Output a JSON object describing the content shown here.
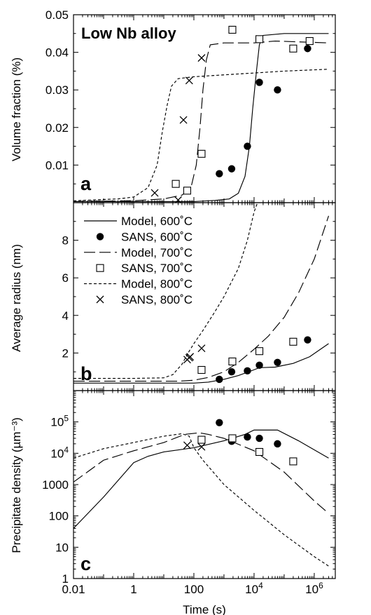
{
  "figure": {
    "title": "Low Nb alloy",
    "xlabel": "Time (s)"
  },
  "legend": [
    {
      "label": "Model, 600˚C",
      "kind": "line",
      "dash": "solid"
    },
    {
      "label": "SANS, 600˚C",
      "kind": "marker",
      "marker": "filled-circle"
    },
    {
      "label": "Model, 700˚C",
      "kind": "line",
      "dash": "long-dash"
    },
    {
      "label": "SANS, 700˚C",
      "kind": "marker",
      "marker": "open-square"
    },
    {
      "label": "Model, 800˚C",
      "kind": "line",
      "dash": "short-dash"
    },
    {
      "label": "SANS, 800˚C",
      "kind": "marker",
      "marker": "cross"
    }
  ],
  "chart_data": [
    {
      "panel": "a",
      "type": "line",
      "title": "Low Nb alloy",
      "xlabel": "Time (s)",
      "ylabel": "Volume fraction (%)",
      "x_scale": "log",
      "xlim": [
        0.01,
        5000000
      ],
      "ylim": [
        0,
        0.05
      ],
      "y_ticks": [
        {
          "v": 0.01,
          "label": "0.01"
        },
        {
          "v": 0.02,
          "label": "0.02"
        },
        {
          "v": 0.03,
          "label": "0.03"
        },
        {
          "v": 0.04,
          "label": "0.04"
        },
        {
          "v": 0.05,
          "label": "0.05"
        }
      ],
      "series": [
        {
          "name": "Model, 600˚C",
          "style": "solid",
          "points": [
            [
              0.01,
              0.0003
            ],
            [
              1,
              0.0003
            ],
            [
              100,
              0.0003
            ],
            [
              500,
              0.0006
            ],
            [
              1500,
              0.001
            ],
            [
              3000,
              0.0025
            ],
            [
              5000,
              0.007
            ],
            [
              7000,
              0.015
            ],
            [
              9000,
              0.025
            ],
            [
              12000,
              0.035
            ],
            [
              15000,
              0.042
            ],
            [
              20000,
              0.0445
            ],
            [
              100000,
              0.045
            ],
            [
              3000000,
              0.045
            ]
          ]
        },
        {
          "name": "Model, 700˚C",
          "style": "long-dash",
          "points": [
            [
              0.01,
              0.0003
            ],
            [
              1,
              0.0005
            ],
            [
              10,
              0.001
            ],
            [
              40,
              0.002
            ],
            [
              80,
              0.004
            ],
            [
              120,
              0.01
            ],
            [
              160,
              0.02
            ],
            [
              200,
              0.03
            ],
            [
              260,
              0.038
            ],
            [
              350,
              0.042
            ],
            [
              1000,
              0.0425
            ],
            [
              10000,
              0.0425
            ],
            [
              50000,
              0.043
            ],
            [
              3000000,
              0.0425
            ]
          ]
        },
        {
          "name": "Model, 800˚C",
          "style": "short-dash",
          "points": [
            [
              0.01,
              0.0005
            ],
            [
              0.3,
              0.001
            ],
            [
              1,
              0.0015
            ],
            [
              3,
              0.004
            ],
            [
              6,
              0.01
            ],
            [
              9,
              0.019
            ],
            [
              13,
              0.026
            ],
            [
              18,
              0.031
            ],
            [
              30,
              0.033
            ],
            [
              100,
              0.0335
            ],
            [
              1000,
              0.034
            ],
            [
              10000,
              0.0345
            ],
            [
              100000,
              0.035
            ],
            [
              3000000,
              0.0355
            ]
          ]
        }
      ],
      "markers": [
        {
          "name": "SANS, 600˚C",
          "marker": "filled-circle",
          "points": [
            [
              700,
              0.0077
            ],
            [
              1800,
              0.009
            ],
            [
              6000,
              0.015
            ],
            [
              15000,
              0.032
            ],
            [
              60000,
              0.03
            ],
            [
              600000,
              0.041
            ]
          ]
        },
        {
          "name": "SANS, 700˚C",
          "marker": "open-square",
          "points": [
            [
              25,
              0.005
            ],
            [
              60,
              0.0032
            ],
            [
              180,
              0.013
            ],
            [
              1900,
              0.046
            ],
            [
              15000,
              0.0435
            ],
            [
              200000,
              0.041
            ],
            [
              700000,
              0.043
            ]
          ]
        },
        {
          "name": "SANS, 800˚C",
          "marker": "cross",
          "points": [
            [
              5,
              0.0026
            ],
            [
              30,
              0.0007
            ],
            [
              45,
              0.022
            ],
            [
              70,
              0.0325
            ],
            [
              180,
              0.0385
            ]
          ]
        }
      ]
    },
    {
      "panel": "b",
      "type": "line",
      "xlabel": "Time (s)",
      "ylabel": "Average radius (nm)",
      "x_scale": "log",
      "xlim": [
        0.01,
        5000000
      ],
      "ylim": [
        0,
        10
      ],
      "y_ticks": [
        {
          "v": 2,
          "label": "2"
        },
        {
          "v": 4,
          "label": "4"
        },
        {
          "v": 6,
          "label": "6"
        },
        {
          "v": 8,
          "label": "8"
        }
      ],
      "series": [
        {
          "name": "Model, 600˚C",
          "style": "solid",
          "points": [
            [
              0.01,
              0.4
            ],
            [
              1,
              0.4
            ],
            [
              100,
              0.4
            ],
            [
              300,
              0.45
            ],
            [
              1000,
              0.6
            ],
            [
              3000,
              0.8
            ],
            [
              8000,
              1.05
            ],
            [
              15000,
              1.22
            ],
            [
              50000,
              1.25
            ],
            [
              200000,
              1.45
            ],
            [
              700000,
              1.8
            ],
            [
              3000000,
              2.5
            ]
          ]
        },
        {
          "name": "Model, 700˚C",
          "style": "long-dash",
          "points": [
            [
              0.01,
              0.5
            ],
            [
              1,
              0.5
            ],
            [
              30,
              0.5
            ],
            [
              100,
              0.55
            ],
            [
              300,
              0.7
            ],
            [
              1000,
              1.0
            ],
            [
              3000,
              1.5
            ],
            [
              10000,
              2.2
            ],
            [
              30000,
              2.9
            ],
            [
              100000,
              3.9
            ],
            [
              300000,
              5.2
            ],
            [
              1000000,
              7.0
            ],
            [
              3000000,
              9.3
            ]
          ]
        },
        {
          "name": "Model, 800˚C",
          "style": "short-dash",
          "points": [
            [
              0.01,
              0.65
            ],
            [
              1,
              0.65
            ],
            [
              10,
              0.68
            ],
            [
              20,
              0.85
            ],
            [
              40,
              1.4
            ],
            [
              70,
              2.1
            ],
            [
              100,
              2.5
            ],
            [
              200,
              3.2
            ],
            [
              500,
              4.2
            ],
            [
              1000,
              5.0
            ],
            [
              3000,
              6.5
            ],
            [
              6000,
              8.0
            ],
            [
              10000,
              9.5
            ],
            [
              13000,
              10.0
            ]
          ]
        }
      ],
      "markers": [
        {
          "name": "SANS, 600˚C",
          "marker": "filled-circle",
          "points": [
            [
              700,
              0.6
            ],
            [
              1800,
              1.0
            ],
            [
              6000,
              1.05
            ],
            [
              15000,
              1.35
            ],
            [
              60000,
              1.5
            ],
            [
              600000,
              2.7
            ]
          ]
        },
        {
          "name": "SANS, 700˚C",
          "marker": "open-square",
          "points": [
            [
              180,
              1.1
            ],
            [
              1900,
              1.55
            ],
            [
              15000,
              2.1
            ],
            [
              200000,
              2.6
            ]
          ]
        },
        {
          "name": "SANS, 800˚C",
          "marker": "cross",
          "points": [
            [
              60,
              1.65
            ],
            [
              70,
              1.75
            ],
            [
              75,
              1.8
            ],
            [
              180,
              2.25
            ]
          ]
        }
      ]
    },
    {
      "panel": "c",
      "type": "line",
      "xlabel": "Time (s)",
      "ylabel": "Precipitate density (µm⁻³)",
      "x_scale": "log",
      "y_scale": "log",
      "xlim": [
        0.01,
        5000000
      ],
      "ylim": [
        1,
        1000000
      ],
      "x_ticks": [
        {
          "v": 0.01,
          "label": "0.01"
        },
        {
          "v": 1,
          "label": "1"
        },
        {
          "v": 100,
          "label": "100"
        },
        {
          "v": 10000,
          "label": "10",
          "sup": "4"
        },
        {
          "v": 1000000,
          "label": "10",
          "sup": "6"
        }
      ],
      "y_ticks": [
        {
          "v": 1,
          "label": "1"
        },
        {
          "v": 10,
          "label": "10"
        },
        {
          "v": 100,
          "label": "100"
        },
        {
          "v": 1000,
          "label": "1000"
        },
        {
          "v": 10000,
          "label": "10",
          "sup": "4"
        },
        {
          "v": 100000,
          "label": "10",
          "sup": "5"
        }
      ],
      "series": [
        {
          "name": "Model, 600˚C",
          "style": "solid",
          "points": [
            [
              0.01,
              40
            ],
            [
              0.1,
              400
            ],
            [
              1,
              5000
            ],
            [
              3,
              8000
            ],
            [
              10,
              11000
            ],
            [
              100,
              15000
            ],
            [
              1000,
              25000
            ],
            [
              5000,
              40000
            ],
            [
              10000,
              55000
            ],
            [
              60000,
              55000
            ],
            [
              300000,
              25000
            ],
            [
              3000000,
              7000
            ]
          ]
        },
        {
          "name": "Model, 700˚C",
          "style": "long-dash",
          "points": [
            [
              0.01,
              1200
            ],
            [
              0.1,
              6000
            ],
            [
              1,
              12000
            ],
            [
              10,
              22000
            ],
            [
              50,
              40000
            ],
            [
              150,
              45000
            ],
            [
              300,
              40000
            ],
            [
              1000,
              30000
            ],
            [
              10000,
              12000
            ],
            [
              100000,
              2500
            ],
            [
              1000000,
              300
            ],
            [
              3000000,
              120
            ]
          ]
        },
        {
          "name": "Model, 800˚C",
          "style": "short-dash",
          "points": [
            [
              0.01,
              7000
            ],
            [
              0.1,
              14000
            ],
            [
              1,
              22000
            ],
            [
              10,
              35000
            ],
            [
              40,
              42000
            ],
            [
              70,
              35000
            ],
            [
              100,
              15000
            ],
            [
              200,
              6000
            ],
            [
              1000,
              1000
            ],
            [
              10000,
              150
            ],
            [
              100000,
              25
            ],
            [
              1000000,
              5
            ],
            [
              3000000,
              2.5
            ]
          ]
        }
      ],
      "markers": [
        {
          "name": "SANS, 600˚C",
          "marker": "filled-circle",
          "points": [
            [
              700,
              95000
            ],
            [
              1800,
              24000
            ],
            [
              6000,
              33000
            ],
            [
              15000,
              30000
            ],
            [
              60000,
              20000
            ]
          ]
        },
        {
          "name": "SANS, 700˚C",
          "marker": "open-square",
          "points": [
            [
              180,
              27000
            ],
            [
              1900,
              30000
            ],
            [
              15000,
              11000
            ],
            [
              200000,
              5500
            ]
          ]
        },
        {
          "name": "SANS, 800˚C",
          "marker": "cross",
          "points": [
            [
              60,
              18000
            ],
            [
              180,
              16000
            ]
          ]
        }
      ]
    }
  ]
}
